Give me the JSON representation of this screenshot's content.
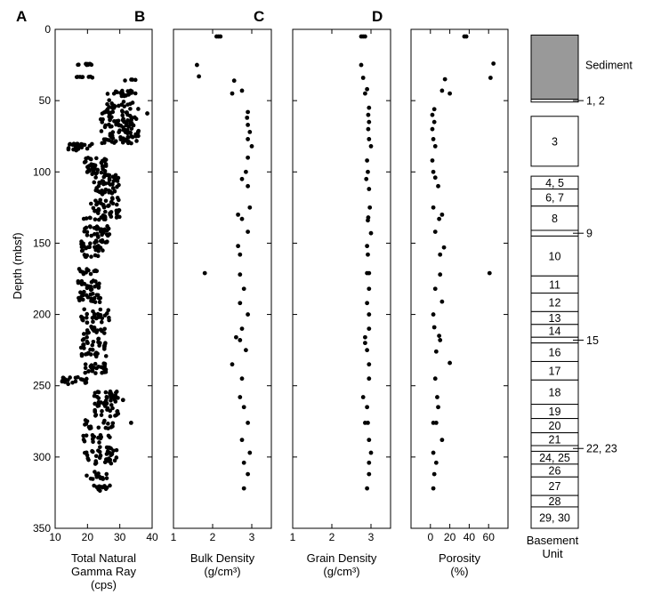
{
  "figure": {
    "depth_axis": {
      "label": "Depth (mbsf)",
      "ticks": [
        0,
        50,
        100,
        150,
        200,
        250,
        300,
        350
      ]
    },
    "unit_column": {
      "label_line1": "Basement",
      "label_line2": "Unit"
    }
  },
  "chart_data": [
    {
      "type": "scatter",
      "panel_letter": "A",
      "xlabel_lines": [
        "Total Natural",
        "Gamma Ray",
        "(cps)"
      ],
      "ylabel": "Depth (mbsf)",
      "xlim": [
        10,
        40
      ],
      "ylim": [
        0,
        350
      ],
      "xticks": [
        10,
        20,
        30,
        40
      ],
      "y_inverted": true,
      "grid": false,
      "clusters": [
        {
          "depth": [
            24,
            25
          ],
          "x_range": [
            16,
            22
          ],
          "n": 10
        },
        {
          "depth": [
            33,
            34
          ],
          "x_range": [
            16,
            22
          ],
          "n": 8
        },
        {
          "depth": [
            35,
            36
          ],
          "x_range": [
            29,
            35
          ],
          "n": 4
        },
        {
          "depth": [
            43,
            47
          ],
          "x_range": [
            26,
            37
          ],
          "n": 20
        },
        {
          "depth": [
            48,
            55
          ],
          "x_range": [
            26,
            34
          ],
          "n": 14
        },
        {
          "depth": [
            55,
            80
          ],
          "x_range": [
            24,
            36
          ],
          "n": 110
        },
        {
          "depth": [
            80,
            85
          ],
          "x_range": [
            14,
            18
          ],
          "n": 16
        },
        {
          "depth": [
            80,
            84
          ],
          "x_range": [
            18,
            22
          ],
          "n": 8
        },
        {
          "depth": [
            90,
            102
          ],
          "x_range": [
            19,
            26
          ],
          "n": 40
        },
        {
          "depth": [
            102,
            116
          ],
          "x_range": [
            22,
            30
          ],
          "n": 45
        },
        {
          "depth": [
            118,
            132
          ],
          "x_range": [
            21,
            30
          ],
          "n": 45
        },
        {
          "depth": [
            131,
            134
          ],
          "x_range": [
            18,
            26
          ],
          "n": 12
        },
        {
          "depth": [
            138,
            146
          ],
          "x_range": [
            19,
            27
          ],
          "n": 30
        },
        {
          "depth": [
            148,
            156
          ],
          "x_range": [
            18,
            27
          ],
          "n": 30
        },
        {
          "depth": [
            158,
            160
          ],
          "x_range": [
            19,
            24
          ],
          "n": 8
        },
        {
          "depth": [
            168,
            172
          ],
          "x_range": [
            17,
            23
          ],
          "n": 14
        },
        {
          "depth": [
            176,
            192
          ],
          "x_range": [
            17,
            24
          ],
          "n": 45
        },
        {
          "depth": [
            196,
            206
          ],
          "x_range": [
            18,
            27
          ],
          "n": 30
        },
        {
          "depth": [
            208,
            214
          ],
          "x_range": [
            17,
            26
          ],
          "n": 16
        },
        {
          "depth": [
            216,
            230
          ],
          "x_range": [
            18,
            26
          ],
          "n": 35
        },
        {
          "depth": [
            234,
            242
          ],
          "x_range": [
            18,
            26
          ],
          "n": 25
        },
        {
          "depth": [
            244,
            249
          ],
          "x_range": [
            12,
            20
          ],
          "n": 22
        },
        {
          "depth": [
            254,
            272
          ],
          "x_range": [
            22,
            30
          ],
          "n": 55
        },
        {
          "depth": [
            274,
            280
          ],
          "x_range": [
            18,
            28
          ],
          "n": 18
        },
        {
          "depth": [
            284,
            290
          ],
          "x_range": [
            18,
            27
          ],
          "n": 16
        },
        {
          "depth": [
            293,
            306
          ],
          "x_range": [
            19,
            29
          ],
          "n": 40
        },
        {
          "depth": [
            310,
            316
          ],
          "x_range": [
            19,
            26
          ],
          "n": 18
        },
        {
          "depth": [
            320,
            324
          ],
          "x_range": [
            22,
            27
          ],
          "n": 14
        }
      ],
      "outliers": [
        [
          38.5,
          59
        ],
        [
          35,
          75
        ],
        [
          33.5,
          276
        ],
        [
          31,
          260
        ]
      ]
    },
    {
      "type": "scatter",
      "panel_letter": "B",
      "xlabel_lines": [
        "Bulk Density",
        "(g/cm³)"
      ],
      "xlim": [
        1,
        3.5
      ],
      "ylim": [
        0,
        350
      ],
      "xticks": [
        1,
        2,
        3
      ],
      "y_inverted": true,
      "grid": false,
      "points": [
        [
          2.1,
          5
        ],
        [
          2.15,
          5
        ],
        [
          2.2,
          5
        ],
        [
          1.6,
          25
        ],
        [
          1.65,
          33
        ],
        [
          2.55,
          36
        ],
        [
          2.5,
          45
        ],
        [
          2.75,
          43
        ],
        [
          2.9,
          58
        ],
        [
          2.88,
          62
        ],
        [
          2.9,
          67
        ],
        [
          2.95,
          72
        ],
        [
          2.9,
          77
        ],
        [
          3.0,
          82
        ],
        [
          2.9,
          90
        ],
        [
          2.85,
          100
        ],
        [
          2.75,
          105
        ],
        [
          2.9,
          110
        ],
        [
          2.95,
          125
        ],
        [
          2.65,
          130
        ],
        [
          2.75,
          133
        ],
        [
          2.9,
          142
        ],
        [
          2.65,
          152
        ],
        [
          2.7,
          158
        ],
        [
          1.8,
          171
        ],
        [
          2.7,
          172
        ],
        [
          2.8,
          182
        ],
        [
          2.7,
          192
        ],
        [
          2.9,
          200
        ],
        [
          2.75,
          210
        ],
        [
          2.6,
          216
        ],
        [
          2.7,
          218
        ],
        [
          2.85,
          225
        ],
        [
          2.5,
          235
        ],
        [
          2.75,
          245
        ],
        [
          2.7,
          258
        ],
        [
          2.8,
          265
        ],
        [
          2.9,
          276
        ],
        [
          2.75,
          288
        ],
        [
          2.95,
          297
        ],
        [
          2.8,
          304
        ],
        [
          2.9,
          312
        ],
        [
          2.8,
          322
        ]
      ]
    },
    {
      "type": "scatter",
      "panel_letter": "C",
      "xlabel_lines": [
        "Grain Density",
        "(g/cm³)"
      ],
      "xlim": [
        1,
        3.5
      ],
      "ylim": [
        0,
        350
      ],
      "xticks": [
        1,
        2,
        3
      ],
      "y_inverted": true,
      "grid": false,
      "points": [
        [
          2.75,
          5
        ],
        [
          2.8,
          5
        ],
        [
          2.85,
          5
        ],
        [
          2.75,
          25
        ],
        [
          2.8,
          34
        ],
        [
          2.85,
          45
        ],
        [
          2.9,
          42
        ],
        [
          2.95,
          55
        ],
        [
          2.93,
          60
        ],
        [
          2.95,
          65
        ],
        [
          2.93,
          70
        ],
        [
          2.95,
          77
        ],
        [
          3.0,
          82
        ],
        [
          2.9,
          92
        ],
        [
          2.92,
          100
        ],
        [
          2.88,
          105
        ],
        [
          2.95,
          112
        ],
        [
          2.97,
          125
        ],
        [
          2.93,
          132
        ],
        [
          2.92,
          134
        ],
        [
          3.0,
          143
        ],
        [
          2.9,
          152
        ],
        [
          2.92,
          158
        ],
        [
          2.9,
          171
        ],
        [
          2.95,
          171
        ],
        [
          2.95,
          182
        ],
        [
          2.9,
          192
        ],
        [
          2.95,
          200
        ],
        [
          2.95,
          210
        ],
        [
          2.85,
          216
        ],
        [
          2.85,
          220
        ],
        [
          2.9,
          225
        ],
        [
          2.95,
          235
        ],
        [
          2.95,
          245
        ],
        [
          2.8,
          258
        ],
        [
          2.9,
          265
        ],
        [
          2.92,
          276
        ],
        [
          2.85,
          276
        ],
        [
          2.95,
          288
        ],
        [
          3.0,
          297
        ],
        [
          2.95,
          304
        ],
        [
          2.95,
          312
        ],
        [
          2.9,
          322
        ]
      ]
    },
    {
      "type": "scatter",
      "panel_letter": "D",
      "xlabel_lines": [
        "Porosity",
        "(%)"
      ],
      "xlim": [
        -20,
        80
      ],
      "ylim": [
        0,
        350
      ],
      "xticks": [
        0,
        20,
        40,
        60
      ],
      "y_inverted": true,
      "grid": false,
      "points": [
        [
          35,
          5
        ],
        [
          37,
          5
        ],
        [
          65,
          24
        ],
        [
          62,
          34
        ],
        [
          15,
          35
        ],
        [
          20,
          45
        ],
        [
          12,
          43
        ],
        [
          4,
          56
        ],
        [
          2,
          60
        ],
        [
          4,
          65
        ],
        [
          2,
          70
        ],
        [
          3,
          77
        ],
        [
          5,
          82
        ],
        [
          2,
          92
        ],
        [
          3,
          100
        ],
        [
          5,
          104
        ],
        [
          8,
          110
        ],
        [
          3,
          125
        ],
        [
          12,
          130
        ],
        [
          9,
          133
        ],
        [
          5,
          142
        ],
        [
          14,
          153
        ],
        [
          10,
          158
        ],
        [
          61,
          171
        ],
        [
          10,
          172
        ],
        [
          5,
          182
        ],
        [
          12,
          191
        ],
        [
          3,
          200
        ],
        [
          4,
          209
        ],
        [
          9,
          215
        ],
        [
          10,
          218
        ],
        [
          6,
          226
        ],
        [
          20,
          234
        ],
        [
          5,
          245
        ],
        [
          7,
          258
        ],
        [
          8,
          265
        ],
        [
          3,
          276
        ],
        [
          6,
          276
        ],
        [
          12,
          288
        ],
        [
          3,
          297
        ],
        [
          6,
          304
        ],
        [
          4,
          312
        ],
        [
          3,
          322
        ]
      ]
    }
  ],
  "units": [
    {
      "label": "Sediment",
      "top": 4,
      "bottom": 49,
      "fill": "#999999",
      "label_side": "right",
      "label_depth": 25
    },
    {
      "label": "1, 2",
      "top": 49,
      "bottom": 51,
      "fill": "#ffffff",
      "label_side": "right",
      "label_depth": 50,
      "pointer": true
    },
    {
      "label": "3",
      "top": 61,
      "bottom": 96,
      "fill": "#ffffff",
      "label_side": "inside"
    },
    {
      "label": "4, 5",
      "top": 103,
      "bottom": 112,
      "fill": "#ffffff",
      "label_side": "inside"
    },
    {
      "label": "6, 7",
      "top": 112,
      "bottom": 124,
      "fill": "#ffffff",
      "label_side": "inside"
    },
    {
      "label": "8",
      "top": 124,
      "bottom": 141,
      "fill": "#ffffff",
      "label_side": "inside"
    },
    {
      "label": "9",
      "top": 141,
      "bottom": 145,
      "fill": "#ffffff",
      "label_side": "right",
      "label_depth": 143,
      "pointer": true
    },
    {
      "label": "10",
      "top": 145,
      "bottom": 173,
      "fill": "#ffffff",
      "label_side": "inside"
    },
    {
      "label": "11",
      "top": 173,
      "bottom": 185,
      "fill": "#ffffff",
      "label_side": "inside"
    },
    {
      "label": "12",
      "top": 185,
      "bottom": 198,
      "fill": "#ffffff",
      "label_side": "inside"
    },
    {
      "label": "13",
      "top": 198,
      "bottom": 207,
      "fill": "#ffffff",
      "label_side": "inside"
    },
    {
      "label": "14",
      "top": 207,
      "bottom": 216,
      "fill": "#ffffff",
      "label_side": "inside"
    },
    {
      "label": "15",
      "top": 216,
      "bottom": 220,
      "fill": "#ffffff",
      "label_side": "right",
      "label_depth": 218,
      "pointer": true
    },
    {
      "label": "16",
      "top": 220,
      "bottom": 233,
      "fill": "#ffffff",
      "label_side": "inside"
    },
    {
      "label": "17",
      "top": 233,
      "bottom": 246,
      "fill": "#ffffff",
      "label_side": "inside"
    },
    {
      "label": "18",
      "top": 246,
      "bottom": 263,
      "fill": "#ffffff",
      "label_side": "inside"
    },
    {
      "label": "19",
      "top": 263,
      "bottom": 273,
      "fill": "#ffffff",
      "label_side": "inside"
    },
    {
      "label": "20",
      "top": 273,
      "bottom": 283,
      "fill": "#ffffff",
      "label_side": "inside"
    },
    {
      "label": "21",
      "top": 283,
      "bottom": 292,
      "fill": "#ffffff",
      "label_side": "inside"
    },
    {
      "label": "22, 23",
      "top": 292,
      "bottom": 296,
      "fill": "#ffffff",
      "label_side": "right",
      "label_depth": 294,
      "pointer": true
    },
    {
      "label": "24, 25",
      "top": 296,
      "bottom": 305,
      "fill": "#ffffff",
      "label_side": "inside"
    },
    {
      "label": "26",
      "top": 305,
      "bottom": 314,
      "fill": "#ffffff",
      "label_side": "inside"
    },
    {
      "label": "27",
      "top": 314,
      "bottom": 327,
      "fill": "#ffffff",
      "label_side": "inside"
    },
    {
      "label": "28",
      "top": 327,
      "bottom": 335,
      "fill": "#ffffff",
      "label_side": "inside"
    },
    {
      "label": "29, 30",
      "top": 335,
      "bottom": 350,
      "fill": "#ffffff",
      "label_side": "inside"
    }
  ]
}
